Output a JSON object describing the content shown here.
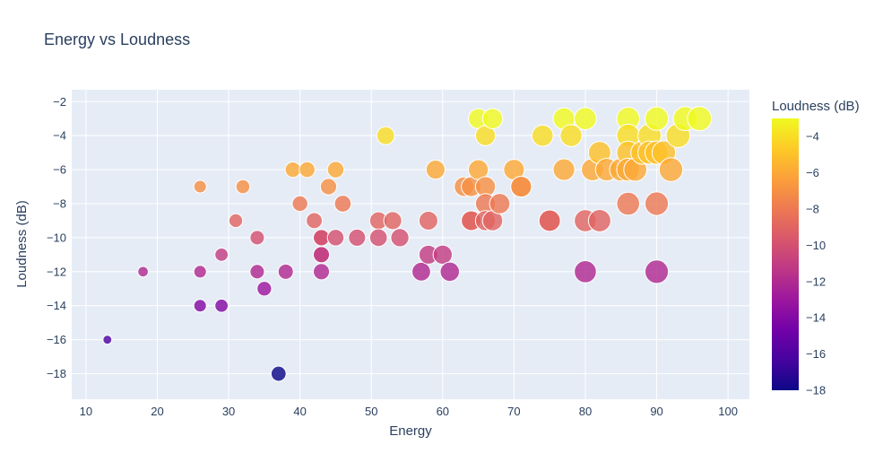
{
  "chart_data": {
    "type": "scatter",
    "title": "Energy vs Loudness",
    "xlabel": "Energy",
    "ylabel": "Loudness (dB)",
    "xlim": [
      8,
      103
    ],
    "ylim": [
      -19.5,
      -1.3
    ],
    "xticks": [
      10,
      20,
      30,
      40,
      50,
      60,
      70,
      80,
      90,
      100
    ],
    "yticks": [
      -2,
      -4,
      -6,
      -8,
      -10,
      -12,
      -14,
      -16,
      -18
    ],
    "grid": true,
    "marker_size_encodes": "Energy",
    "colorbar": {
      "title": "Loudness (dB)",
      "range": [
        -18,
        -3
      ],
      "ticks": [
        -4,
        -6,
        -8,
        -10,
        -12,
        -14,
        -16,
        -18
      ],
      "colorscale": [
        "#0d0887",
        "#46039f",
        "#7201a8",
        "#9c179e",
        "#bd3786",
        "#d8576b",
        "#ed7953",
        "#fb9f3a",
        "#fdca26",
        "#f0f921"
      ]
    },
    "points": [
      {
        "x": 13,
        "y": -16
      },
      {
        "x": 18,
        "y": -12
      },
      {
        "x": 26,
        "y": -7
      },
      {
        "x": 26,
        "y": -12
      },
      {
        "x": 26,
        "y": -14
      },
      {
        "x": 29,
        "y": -11
      },
      {
        "x": 29,
        "y": -14
      },
      {
        "x": 31,
        "y": -9
      },
      {
        "x": 32,
        "y": -7
      },
      {
        "x": 34,
        "y": -10
      },
      {
        "x": 34,
        "y": -12
      },
      {
        "x": 35,
        "y": -13
      },
      {
        "x": 37,
        "y": -18
      },
      {
        "x": 38,
        "y": -12
      },
      {
        "x": 39,
        "y": -6
      },
      {
        "x": 40,
        "y": -8
      },
      {
        "x": 41,
        "y": -6
      },
      {
        "x": 42,
        "y": -9
      },
      {
        "x": 43,
        "y": -10
      },
      {
        "x": 43,
        "y": -10
      },
      {
        "x": 43,
        "y": -11
      },
      {
        "x": 43,
        "y": -11
      },
      {
        "x": 43,
        "y": -12
      },
      {
        "x": 44,
        "y": -7
      },
      {
        "x": 45,
        "y": -6
      },
      {
        "x": 45,
        "y": -10
      },
      {
        "x": 46,
        "y": -8
      },
      {
        "x": 48,
        "y": -10
      },
      {
        "x": 51,
        "y": -9
      },
      {
        "x": 51,
        "y": -10
      },
      {
        "x": 52,
        "y": -4
      },
      {
        "x": 53,
        "y": -9
      },
      {
        "x": 54,
        "y": -10
      },
      {
        "x": 57,
        "y": -12
      },
      {
        "x": 58,
        "y": -9
      },
      {
        "x": 58,
        "y": -11
      },
      {
        "x": 59,
        "y": -6
      },
      {
        "x": 60,
        "y": -11
      },
      {
        "x": 61,
        "y": -12
      },
      {
        "x": 63,
        "y": -7
      },
      {
        "x": 64,
        "y": -7
      },
      {
        "x": 64,
        "y": -9
      },
      {
        "x": 64,
        "y": -9
      },
      {
        "x": 65,
        "y": -3
      },
      {
        "x": 65,
        "y": -6
      },
      {
        "x": 66,
        "y": -4
      },
      {
        "x": 66,
        "y": -7
      },
      {
        "x": 66,
        "y": -8
      },
      {
        "x": 66,
        "y": -9
      },
      {
        "x": 67,
        "y": -3
      },
      {
        "x": 67,
        "y": -9
      },
      {
        "x": 68,
        "y": -8
      },
      {
        "x": 70,
        "y": -6
      },
      {
        "x": 71,
        "y": -7
      },
      {
        "x": 71,
        "y": -7
      },
      {
        "x": 74,
        "y": -4
      },
      {
        "x": 75,
        "y": -9
      },
      {
        "x": 75,
        "y": -9
      },
      {
        "x": 77,
        "y": -3
      },
      {
        "x": 77,
        "y": -6
      },
      {
        "x": 78,
        "y": -4
      },
      {
        "x": 80,
        "y": -3
      },
      {
        "x": 80,
        "y": -9
      },
      {
        "x": 80,
        "y": -12
      },
      {
        "x": 81,
        "y": -6
      },
      {
        "x": 82,
        "y": -5
      },
      {
        "x": 82,
        "y": -9
      },
      {
        "x": 83,
        "y": -6
      },
      {
        "x": 85,
        "y": -6
      },
      {
        "x": 86,
        "y": -3
      },
      {
        "x": 86,
        "y": -4
      },
      {
        "x": 86,
        "y": -5
      },
      {
        "x": 86,
        "y": -6
      },
      {
        "x": 86,
        "y": -8
      },
      {
        "x": 87,
        "y": -6
      },
      {
        "x": 88,
        "y": -5
      },
      {
        "x": 89,
        "y": -4
      },
      {
        "x": 89,
        "y": -5
      },
      {
        "x": 90,
        "y": -3
      },
      {
        "x": 90,
        "y": -5
      },
      {
        "x": 90,
        "y": -8
      },
      {
        "x": 90,
        "y": -12
      },
      {
        "x": 91,
        "y": -5
      },
      {
        "x": 92,
        "y": -6
      },
      {
        "x": 93,
        "y": -4
      },
      {
        "x": 94,
        "y": -3
      },
      {
        "x": 96,
        "y": -3
      }
    ]
  }
}
